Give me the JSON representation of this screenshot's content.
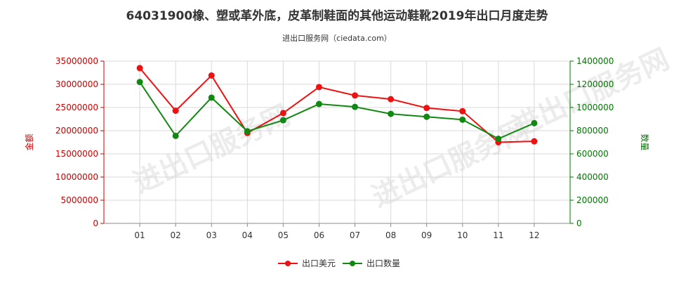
{
  "chart_data": {
    "type": "line",
    "title": "64031900橡、塑或革外底，皮革制鞋面的其他运动鞋靴2019年出口月度走势",
    "subtitle": "进出口服务网（ciedata.com）",
    "watermark": "进出口服务网",
    "categories": [
      "01",
      "02",
      "03",
      "04",
      "05",
      "06",
      "07",
      "08",
      "09",
      "10",
      "11",
      "12"
    ],
    "left_axis": {
      "label": "金额",
      "ylim": [
        0,
        35000000
      ],
      "ticks": [
        0,
        5000000,
        10000000,
        15000000,
        20000000,
        25000000,
        30000000,
        35000000
      ],
      "color": "#cc0000"
    },
    "right_axis": {
      "label": "数量",
      "ylim": [
        0,
        1400000
      ],
      "ticks": [
        0,
        200000,
        400000,
        600000,
        800000,
        1000000,
        1200000,
        1400000
      ],
      "color": "#007700"
    },
    "series": [
      {
        "name": "出口美元",
        "axis": "left",
        "color": "#ee1111",
        "values": [
          33500000,
          24300000,
          31900000,
          19500000,
          23800000,
          29400000,
          27600000,
          26800000,
          24900000,
          24200000,
          17500000,
          17700000
        ]
      },
      {
        "name": "出口数量",
        "axis": "right",
        "color": "#118811",
        "values": [
          1220000,
          755000,
          1085000,
          795000,
          890000,
          1030000,
          1005000,
          945000,
          920000,
          895000,
          730000,
          865000
        ]
      }
    ],
    "grid": true,
    "legend_position": "bottom-center"
  }
}
